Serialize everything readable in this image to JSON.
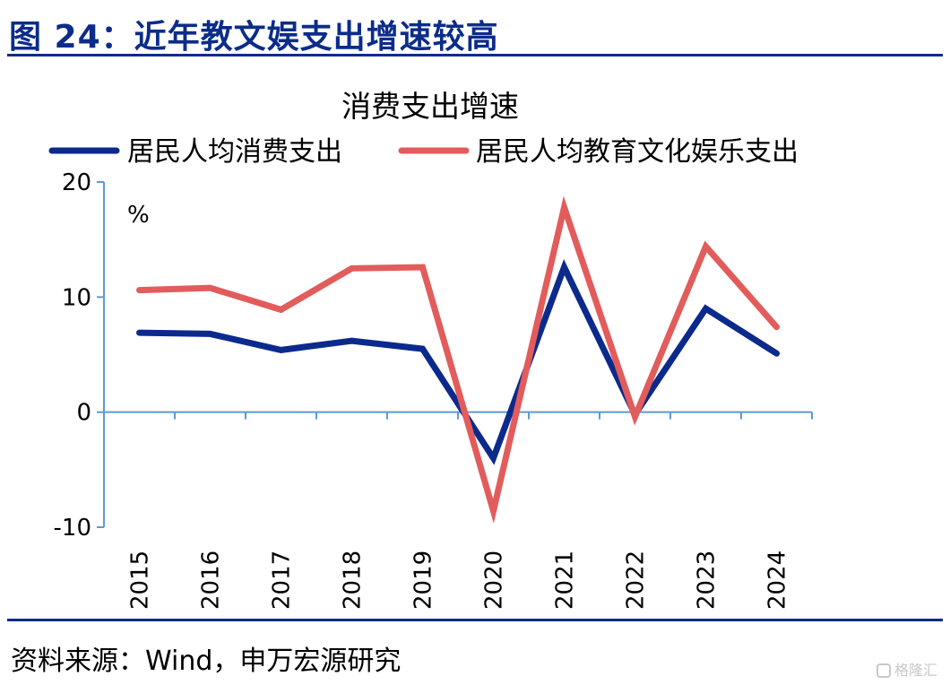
{
  "figure": {
    "title": "图 24：近年教文娱支出增速较高",
    "source": "资料来源：Wind，申万宏源研究",
    "watermark": "格隆汇"
  },
  "chart_data": {
    "type": "line",
    "title": "消费支出增速",
    "unit": "%",
    "categories": [
      "2015",
      "2016",
      "2017",
      "2018",
      "2019",
      "2020",
      "2021",
      "2022",
      "2023",
      "2024"
    ],
    "series": [
      {
        "name": "居民人均消费支出",
        "color": "#0b2a8c",
        "values": [
          6.9,
          6.8,
          5.4,
          6.2,
          5.5,
          -4.0,
          12.6,
          -0.2,
          9.0,
          5.1
        ]
      },
      {
        "name": "居民人均教育文化娱乐支出",
        "color": "#e25c5c",
        "values": [
          10.6,
          10.8,
          8.9,
          12.5,
          12.6,
          -8.6,
          17.8,
          -0.4,
          14.4,
          7.4
        ]
      }
    ],
    "yticks": [
      -10,
      0,
      10,
      20
    ],
    "ylim": [
      -10,
      20
    ],
    "axis_color": "#5b9bd5",
    "grid": false,
    "legend_position": "top"
  }
}
